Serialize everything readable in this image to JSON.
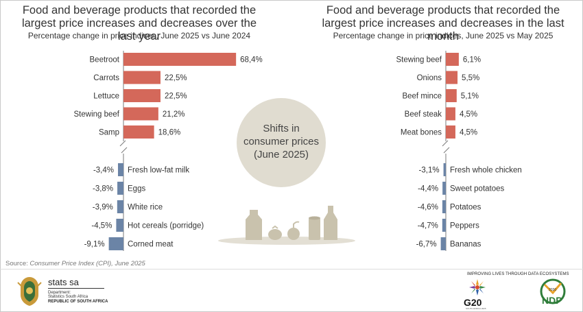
{
  "chart_data": [
    {
      "type": "bar",
      "title": "Food and beverage products that recorded the largest price increases and decreases over the last year",
      "subtitle": "Percentage change in price indices, June 2025 vs June 2024",
      "increases": {
        "categories": [
          "Beetroot",
          "Carrots",
          "Lettuce",
          "Stewing beef",
          "Samp"
        ],
        "values": [
          68.4,
          22.5,
          22.5,
          21.2,
          18.6
        ],
        "labels": [
          "68,4%",
          "22,5%",
          "22,5%",
          "21,2%",
          "18,6%"
        ]
      },
      "decreases": {
        "categories": [
          "Fresh low-fat milk",
          "Eggs",
          "White rice",
          "Hot cereals (porridge)",
          "Corned meat"
        ],
        "values": [
          -3.4,
          -3.8,
          -3.9,
          -4.5,
          -9.1
        ],
        "labels": [
          "-3,4%",
          "-3,8%",
          "-3,9%",
          "-4,5%",
          "-9,1%"
        ]
      }
    },
    {
      "type": "bar",
      "title": "Food and beverage products that recorded the largest price increases and decreases in the last month",
      "subtitle": "Percentage change in price indices, June 2025 vs May 2025",
      "increases": {
        "categories": [
          "Stewing beef",
          "Onions",
          "Beef mince",
          "Beef steak",
          "Meat bones"
        ],
        "values": [
          6.1,
          5.5,
          5.1,
          4.5,
          4.5
        ],
        "labels": [
          "6,1%",
          "5,5%",
          "5,1%",
          "4,5%",
          "4,5%"
        ]
      },
      "decreases": {
        "categories": [
          "Fresh whole chicken",
          "Sweet potatoes",
          "Potatoes",
          "Peppers",
          "Bananas"
        ],
        "values": [
          -3.1,
          -4.4,
          -4.6,
          -4.7,
          -6.7
        ],
        "labels": [
          "-3,1%",
          "-4,4%",
          "-4,6%",
          "-4,7%",
          "-6,7%"
        ]
      }
    }
  ],
  "colors": {
    "increase": "#d4685a",
    "decrease": "#6b84a6",
    "circle": "#e0dcd0",
    "icons": "#c9c2ad",
    "axis": "#7a7a7a"
  },
  "center": {
    "text_line1": "Shifts in",
    "text_line2": "consumer prices",
    "text_line3": "(June 2025)"
  },
  "source": {
    "label": "Source:",
    "text": "Consumer Price Index (CPI), June 2025"
  },
  "footer": {
    "org_name": "stats sa",
    "dept_line1": "Department:",
    "dept_line2": "Statistics South Africa",
    "republic": "REPUBLIC OF SOUTH AFRICA",
    "tagline": "IMPROVING LIVES THROUGH DATA ECOSYSTEMS",
    "g20": "G20",
    "g20_sub": "SOUTH AFRICA 2025",
    "ndp_year": "2030",
    "ndp": "NDP"
  }
}
